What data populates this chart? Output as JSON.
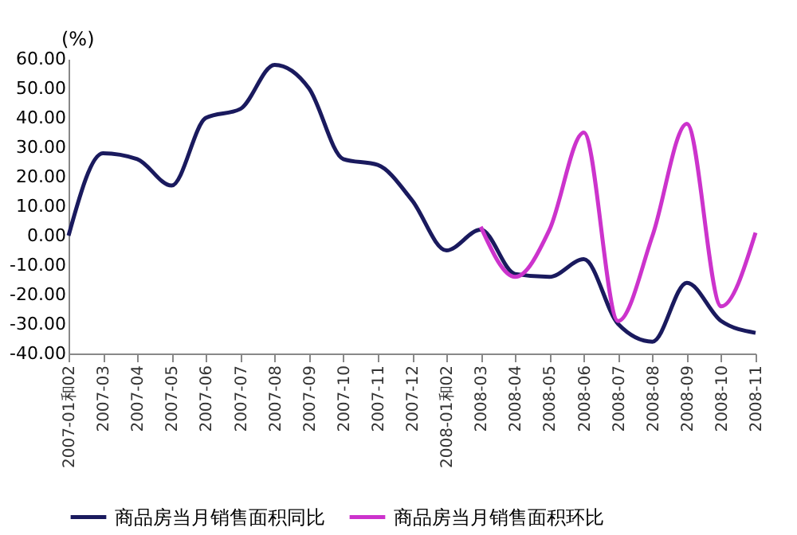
{
  "chart_data": {
    "type": "line",
    "ylabel": "(%)",
    "categories": [
      "2007-01和02",
      "2007-03",
      "2007-04",
      "2007-05",
      "2007-06",
      "2007-07",
      "2007-08",
      "2007-09",
      "2007-10",
      "2007-11",
      "2007-12",
      "2008-01和02",
      "2008-03",
      "2008-04",
      "2008-05",
      "2008-06",
      "2008-07",
      "2008-08",
      "2008-09",
      "2008-10",
      "2008-11"
    ],
    "series": [
      {
        "name": "商品房当月销售面积同比",
        "color": "#1a1a5e",
        "values": [
          0,
          28,
          26,
          17,
          40,
          43,
          58,
          50,
          26,
          24,
          12,
          -5,
          2,
          -13,
          -14,
          -8,
          -30,
          -36,
          -16,
          -29,
          -33
        ]
      },
      {
        "name": "商品房当月销售面积环比",
        "color": "#cc33cc",
        "values": [
          null,
          null,
          null,
          null,
          null,
          null,
          null,
          null,
          null,
          null,
          null,
          null,
          3,
          -14,
          2,
          35,
          -29,
          0,
          38,
          -24,
          1
        ]
      }
    ],
    "ylim": [
      -40,
      60
    ],
    "yticks": [
      {
        "value": -40,
        "label": "-40.00"
      },
      {
        "value": -30,
        "label": "-30.00"
      },
      {
        "value": -20,
        "label": "-20.00"
      },
      {
        "value": -10,
        "label": "-10.00"
      },
      {
        "value": 0,
        "label": "0.00"
      },
      {
        "value": 10,
        "label": "10.00"
      },
      {
        "value": 20,
        "label": "20.00"
      },
      {
        "value": 30,
        "label": "30.00"
      },
      {
        "value": 40,
        "label": "40.00"
      },
      {
        "value": 50,
        "label": "50.00"
      },
      {
        "value": 60,
        "label": "60.00"
      }
    ],
    "grid": false,
    "legend": "bottom",
    "marker": "none",
    "line_style": "solid"
  }
}
